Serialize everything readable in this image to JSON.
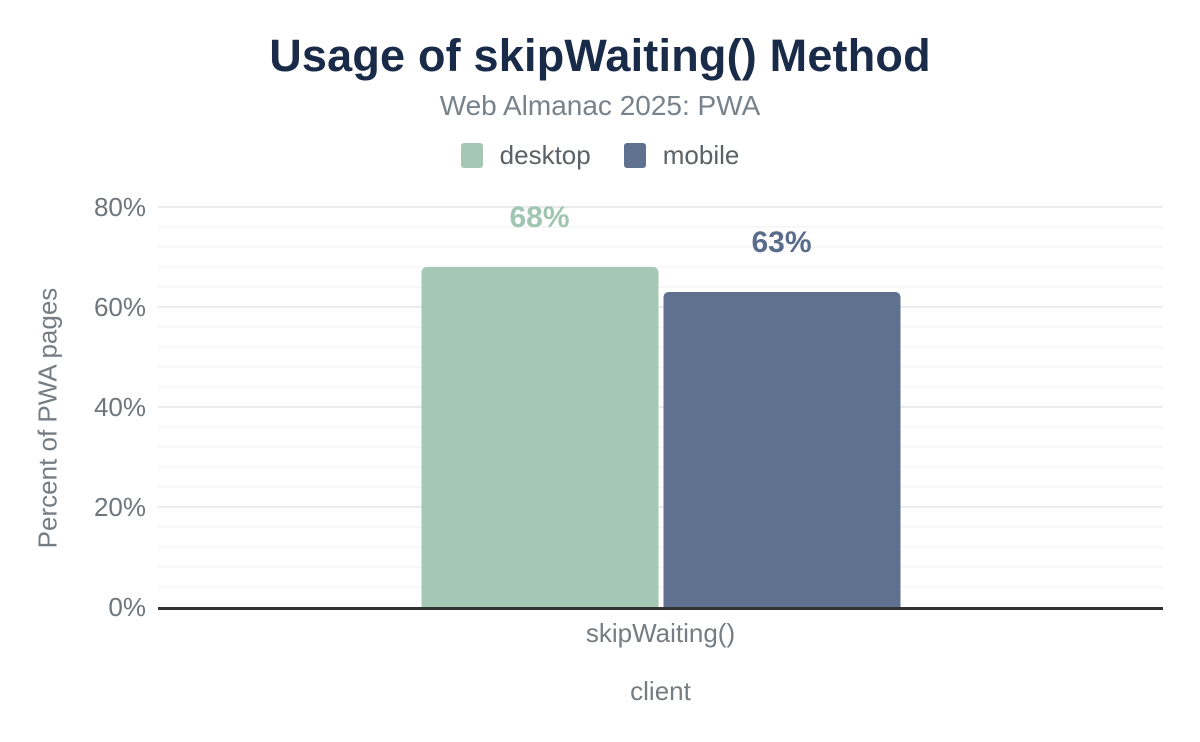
{
  "chart_data": {
    "type": "bar",
    "title": "Usage of skipWaiting() Method",
    "subtitle": "Web Almanac 2025: PWA",
    "categories": [
      "skipWaiting()"
    ],
    "series": [
      {
        "name": "desktop",
        "values": [
          68
        ],
        "data_labels": [
          "68%"
        ],
        "color": "#a5c8b5",
        "label_color": "#a0c5b1"
      },
      {
        "name": "mobile",
        "values": [
          63
        ],
        "data_labels": [
          "63%"
        ],
        "color": "#5f718e",
        "label_color": "#5a6c8c"
      }
    ],
    "xlabel": "client",
    "ylabel": "Percent of PWA pages",
    "ylim": [
      0,
      80
    ],
    "yticks": [
      0,
      20,
      40,
      60,
      80
    ],
    "ytick_labels": [
      "0%",
      "20%",
      "40%",
      "60%",
      "80%"
    ],
    "minor_grid_step_percent": 4,
    "grid": true,
    "legend_position": "top",
    "axis_line_color": "#333333",
    "title_color": "#1a2b49",
    "subtitle_color": "#78828a"
  }
}
